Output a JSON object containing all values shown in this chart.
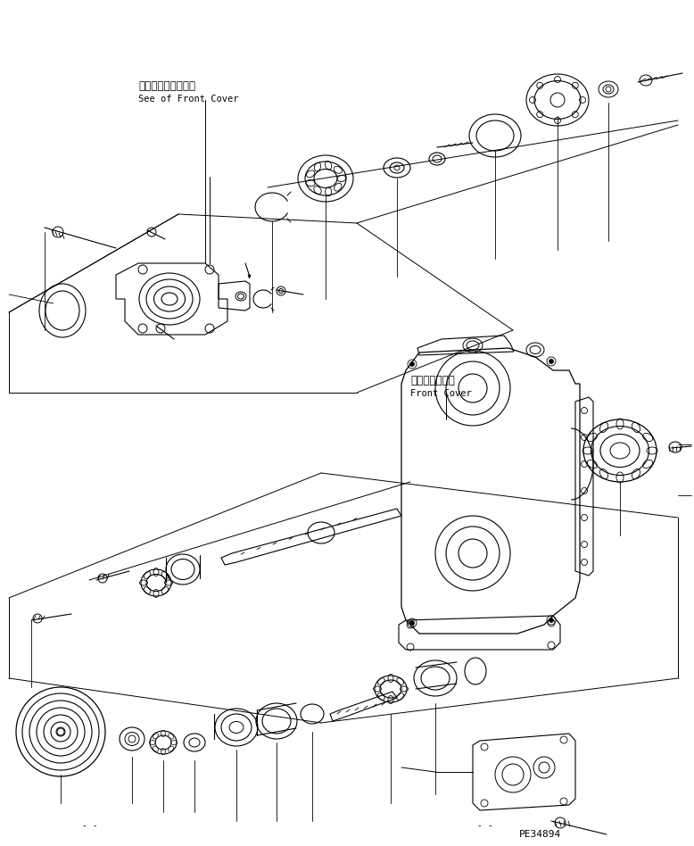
{
  "background_color": "#ffffff",
  "line_color": "#000000",
  "text_color": "#000000",
  "label1_jp": "フロントカバー参照",
  "label1_en": "See of Front Cover",
  "label2_jp": "フロントカバー",
  "label2_en": "Front Cover",
  "code": "PE34894",
  "fig_width": 7.78,
  "fig_height": 9.48
}
